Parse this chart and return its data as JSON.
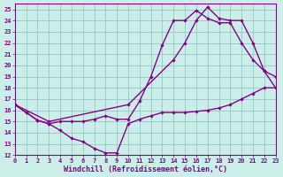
{
  "bg_color": "#cceee8",
  "line_color": "#880088",
  "grid_color": "#99cccc",
  "xlabel": "Windchill (Refroidissement éolien,°C)",
  "xlim": [
    0,
    23
  ],
  "ylim": [
    12,
    25.5
  ],
  "xticks": [
    0,
    1,
    2,
    3,
    4,
    5,
    6,
    7,
    8,
    9,
    10,
    11,
    12,
    13,
    14,
    15,
    16,
    17,
    18,
    19,
    20,
    21,
    22,
    23
  ],
  "yticks": [
    12,
    13,
    14,
    15,
    16,
    17,
    18,
    19,
    20,
    21,
    22,
    23,
    24,
    25
  ],
  "line1_x": [
    0,
    1,
    2,
    3,
    4,
    5,
    6,
    7,
    8,
    9,
    10,
    11,
    12,
    13,
    14,
    15,
    16,
    17,
    18,
    19,
    20,
    21,
    22,
    23
  ],
  "line1_y": [
    16.5,
    15.8,
    15.1,
    14.8,
    14.2,
    13.5,
    13.2,
    12.6,
    12.2,
    12.2,
    14.8,
    15.2,
    15.5,
    15.8,
    15.8,
    15.8,
    15.9,
    16.0,
    16.2,
    16.5,
    17.0,
    17.5,
    18.0,
    18.0
  ],
  "line2_x": [
    0,
    1,
    2,
    3,
    4,
    5,
    6,
    7,
    8,
    9,
    10,
    11,
    12,
    13,
    14,
    15,
    16,
    17,
    18,
    19,
    20,
    21,
    22,
    23
  ],
  "line2_y": [
    16.5,
    15.8,
    15.1,
    14.8,
    15.0,
    15.0,
    15.0,
    15.2,
    15.5,
    15.2,
    15.2,
    16.8,
    19.0,
    21.8,
    24.0,
    24.0,
    24.9,
    24.2,
    23.8,
    23.8,
    22.0,
    20.5,
    19.5,
    19.0
  ],
  "line3_x": [
    0,
    3,
    10,
    14,
    15,
    16,
    17,
    18,
    19,
    20,
    21,
    22,
    23
  ],
  "line3_y": [
    16.5,
    15.0,
    16.5,
    20.5,
    22.0,
    24.0,
    25.2,
    24.2,
    24.0,
    24.0,
    22.0,
    19.5,
    18.0
  ]
}
